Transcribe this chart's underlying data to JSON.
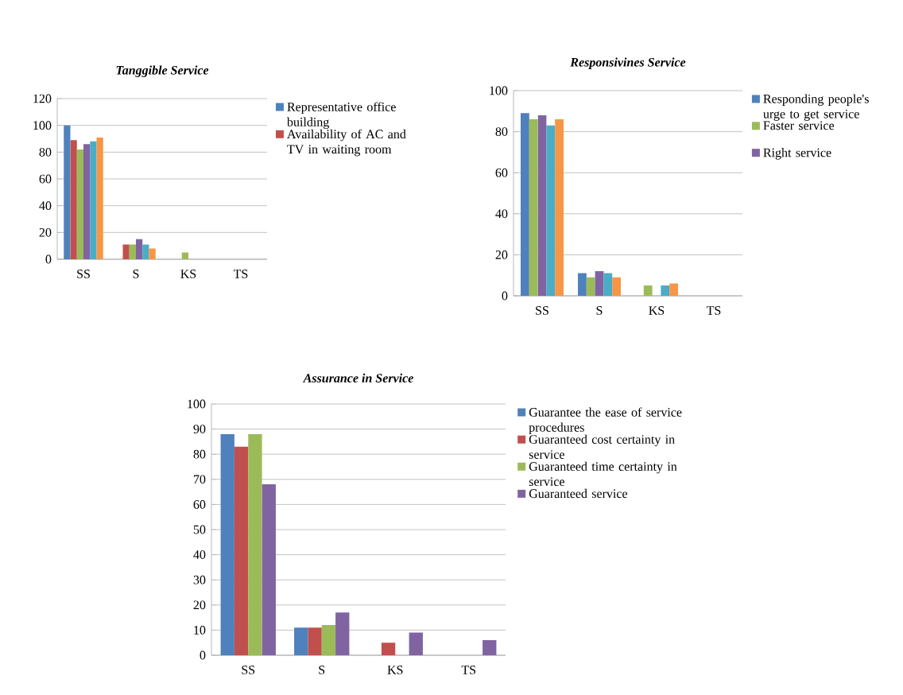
{
  "chart_data": [
    {
      "type": "bar",
      "title": "Tanggible Service",
      "categories": [
        "SS",
        "S",
        "KS",
        "TS"
      ],
      "ylim": [
        0,
        120
      ],
      "yticks": [
        0,
        20,
        40,
        60,
        80,
        100,
        120
      ],
      "grid": "y",
      "legend": "right",
      "series": [
        {
          "name": "Representative office building",
          "color": "#4f81bd",
          "values": [
            100,
            0,
            0,
            0
          ]
        },
        {
          "name": "Availability of AC and TV in waiting room",
          "color": "#c0504d",
          "values": [
            89,
            11,
            0,
            0
          ]
        },
        {
          "color": "#9bbb59",
          "values": [
            82,
            11,
            5,
            0
          ]
        },
        {
          "color": "#8064a2",
          "values": [
            86,
            15,
            0,
            0
          ]
        },
        {
          "color": "#4bacc6",
          "values": [
            88,
            11,
            0,
            0
          ]
        },
        {
          "color": "#f79646",
          "values": [
            91,
            8,
            0,
            0
          ]
        }
      ]
    },
    {
      "type": "bar",
      "title": "Responsivines Service",
      "categories": [
        "SS",
        "S",
        "KS",
        "TS"
      ],
      "ylim": [
        0,
        100
      ],
      "yticks": [
        0,
        20,
        40,
        60,
        80,
        100
      ],
      "grid": "y",
      "legend": "right",
      "series": [
        {
          "name": "Responding people's urge to get service",
          "color": "#4f81bd",
          "values": [
            89,
            11,
            0,
            0
          ]
        },
        {
          "name": "Faster service",
          "color": "#9bbb59",
          "values": [
            86,
            9,
            5,
            0
          ]
        },
        {
          "name": "Right service",
          "color": "#8064a2",
          "values": [
            88,
            12,
            0,
            0
          ]
        },
        {
          "color": "#4bacc6",
          "values": [
            83,
            11,
            5,
            0
          ]
        },
        {
          "color": "#f79646",
          "values": [
            86,
            9,
            6,
            0
          ]
        }
      ]
    },
    {
      "type": "bar",
      "title": "Assurance in Service",
      "categories": [
        "SS",
        "S",
        "KS",
        "TS"
      ],
      "ylim": [
        0,
        100
      ],
      "yticks": [
        0,
        10,
        20,
        30,
        40,
        50,
        60,
        70,
        80,
        90,
        100
      ],
      "grid": "y",
      "legend": "right",
      "series": [
        {
          "name": "Guarantee the ease of service procedures",
          "color": "#4f81bd",
          "values": [
            88,
            11,
            0,
            0
          ]
        },
        {
          "name": "Guaranteed cost certainty in service",
          "color": "#c0504d",
          "values": [
            83,
            11,
            5,
            0
          ]
        },
        {
          "name": "Guaranteed time certainty in service",
          "color": "#9bbb59",
          "values": [
            88,
            12,
            0,
            0
          ]
        },
        {
          "name": "Guaranteed service",
          "color": "#8064a2",
          "values": [
            68,
            17,
            9,
            6
          ]
        }
      ]
    }
  ]
}
